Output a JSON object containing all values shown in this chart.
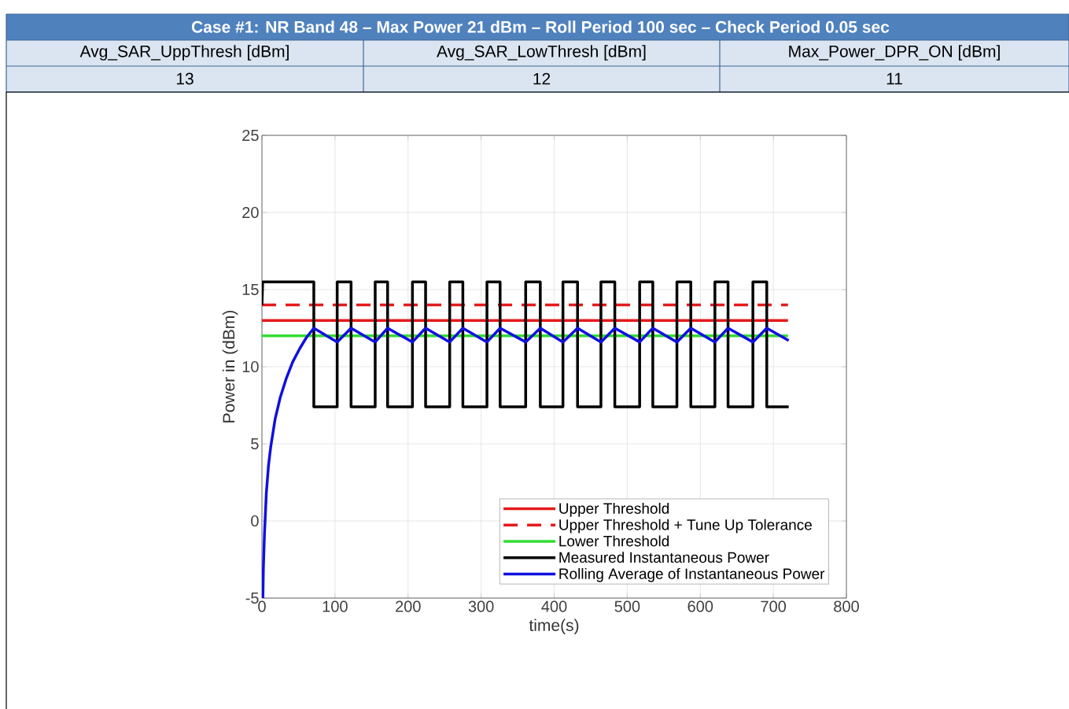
{
  "chart_data": {
    "type": "line",
    "title": "Case #1: NR Band 48 – Max Power 21 dBm – Roll Period 100 sec – Check Period 0.05 sec",
    "annotations": [
      "Avg_SAR_UppThresh [dBm]",
      "Avg_SAR_LowThresh [dBm]",
      "Max_Power_DPR_ON [dBm]",
      "13",
      "12",
      "11"
    ],
    "xlabel": "time(s)",
    "ylabel": "Power in (dBm)",
    "xlim": [
      0,
      800
    ],
    "ylim": [
      -5,
      25
    ],
    "xticks": [
      0,
      100,
      200,
      300,
      400,
      500,
      600,
      700,
      800
    ],
    "yticks": [
      -5,
      0,
      5,
      10,
      15,
      20,
      25
    ],
    "grid": true,
    "legend": "bottom right",
    "series": [
      {
        "name": "Upper Threshold",
        "color": "#e41a1c",
        "line_style": "solid",
        "x": [
          0,
          720
        ],
        "values": [
          13,
          13
        ]
      },
      {
        "name": "Upper Threshold + Tune Up Tolerance",
        "color": "#e41a1c",
        "line_style": "dashed",
        "x": [
          0,
          720
        ],
        "values": [
          14,
          14
        ]
      },
      {
        "name": "Lower Threshold",
        "color": "#33dd33",
        "line_style": "solid",
        "x": [
          0,
          720
        ],
        "values": [
          12,
          12
        ]
      },
      {
        "name": "Measured Instantaneous Power",
        "color": "#000000",
        "line_style": "solid",
        "x": [
          0,
          1,
          71,
          71,
          103,
          103,
          122,
          122,
          155,
          155,
          172,
          172,
          206,
          206,
          224,
          224,
          257,
          257,
          275,
          275,
          308,
          308,
          326,
          326,
          361,
          361,
          381,
          381,
          412,
          412,
          432,
          432,
          464,
          464,
          483,
          483,
          517,
          517,
          535,
          535,
          568,
          568,
          587,
          587,
          620,
          620,
          638,
          638,
          672,
          672,
          691,
          691,
          721
        ],
        "values": [
          14,
          15.5,
          15.5,
          7.4,
          7.4,
          15.5,
          15.5,
          7.4,
          7.4,
          15.5,
          15.5,
          7.4,
          7.4,
          15.5,
          15.5,
          7.4,
          7.4,
          15.5,
          15.5,
          7.4,
          7.4,
          15.5,
          15.5,
          7.4,
          7.4,
          15.5,
          15.5,
          7.4,
          7.4,
          15.5,
          15.5,
          7.4,
          7.4,
          15.5,
          15.5,
          7.4,
          7.4,
          15.5,
          15.5,
          7.4,
          7.4,
          15.5,
          15.5,
          7.4,
          7.4,
          15.5,
          15.5,
          7.4,
          7.4,
          15.5,
          15.5,
          7.4,
          7.4
        ]
      },
      {
        "name": "Rolling Average of Instantaneous Power",
        "color": "#1010e0",
        "line_style": "solid",
        "x": [
          1.3,
          2,
          3.5,
          6,
          9,
          12,
          18,
          25,
          33,
          42,
          52,
          61,
          71,
          103,
          122,
          155,
          172,
          206,
          224,
          257,
          275,
          308,
          326,
          361,
          381,
          412,
          432,
          464,
          483,
          517,
          535,
          568,
          587,
          620,
          638,
          672,
          691,
          721
        ],
        "values": [
          -5,
          -3,
          -0.8,
          1.8,
          3.6,
          4.8,
          6.6,
          8.0,
          9.2,
          10.3,
          11.2,
          11.9,
          12.5,
          11.6,
          12.5,
          11.6,
          12.5,
          11.6,
          12.5,
          11.6,
          12.5,
          11.6,
          12.5,
          11.6,
          12.5,
          11.6,
          12.5,
          11.6,
          12.5,
          11.6,
          12.5,
          11.6,
          12.5,
          11.6,
          12.5,
          11.6,
          12.5,
          11.7
        ]
      }
    ]
  }
}
